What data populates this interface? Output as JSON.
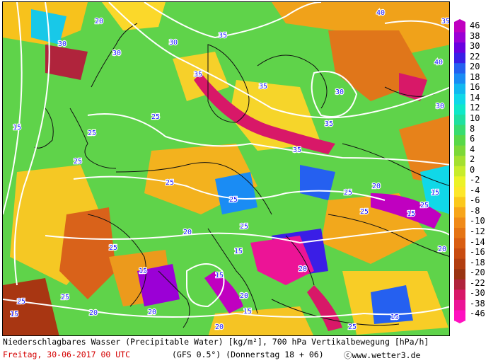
{
  "colors": {
    "map_bg": "#5fd34a",
    "coast": "#111111",
    "isoline": "#ffffff",
    "date_text": "#d40000"
  },
  "isoline_labels": [
    "15",
    "20",
    "25",
    "30",
    "35",
    "40"
  ],
  "legend": {
    "labels": [
      "46",
      "38",
      "30",
      "22",
      "20",
      "18",
      "16",
      "14",
      "12",
      "10",
      "8",
      "6",
      "4",
      "2",
      "0",
      "-2",
      "-4",
      "-6",
      "-8",
      "-10",
      "-12",
      "-14",
      "-16",
      "-18",
      "-20",
      "-22",
      "-30",
      "-38",
      "-46"
    ],
    "colors": [
      "#c000c0",
      "#9b00d6",
      "#6a00e0",
      "#3a1ee6",
      "#2560f0",
      "#1a8cf4",
      "#12b8f0",
      "#10d8e8",
      "#10e8c8",
      "#20e0a0",
      "#38dc70",
      "#58d848",
      "#7cd838",
      "#a4e030",
      "#c8ec2c",
      "#ecf228",
      "#fde72a",
      "#fbc81c",
      "#f7a51a",
      "#f08a18",
      "#e57414",
      "#d95e12",
      "#c84c10",
      "#b23e10",
      "#9a3412",
      "#b0243c",
      "#d81868",
      "#ec1496",
      "#ff10c0"
    ]
  },
  "footer": {
    "title": "Niederschlagbares Wasser (Precipitable Water) [kg/m²], 700 hPa Vertikalbewegung [hPa/h]",
    "date": "Freitag, 30-06-2017  00 UTC",
    "run": "(GFS 0.5°)  (Donnerstag 18 + 06)",
    "copyright": "ⓒwww.wetter3.de"
  }
}
